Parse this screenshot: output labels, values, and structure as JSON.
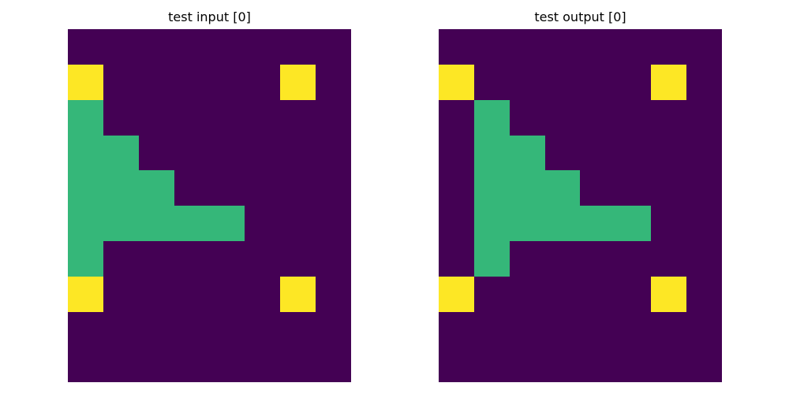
{
  "palette": {
    "0": "#440154",
    "3": "#35b779",
    "4": "#fde725"
  },
  "panels": [
    {
      "title": "test input [0]",
      "grid": [
        [
          0,
          0,
          0,
          0,
          0,
          0,
          0,
          0
        ],
        [
          4,
          0,
          0,
          0,
          0,
          0,
          4,
          0
        ],
        [
          3,
          0,
          0,
          0,
          0,
          0,
          0,
          0
        ],
        [
          3,
          3,
          0,
          0,
          0,
          0,
          0,
          0
        ],
        [
          3,
          3,
          3,
          0,
          0,
          0,
          0,
          0
        ],
        [
          3,
          3,
          3,
          3,
          3,
          0,
          0,
          0
        ],
        [
          3,
          0,
          0,
          0,
          0,
          0,
          0,
          0
        ],
        [
          4,
          0,
          0,
          0,
          0,
          0,
          4,
          0
        ],
        [
          0,
          0,
          0,
          0,
          0,
          0,
          0,
          0
        ],
        [
          0,
          0,
          0,
          0,
          0,
          0,
          0,
          0
        ]
      ]
    },
    {
      "title": "test output [0]",
      "grid": [
        [
          0,
          0,
          0,
          0,
          0,
          0,
          0,
          0
        ],
        [
          4,
          0,
          0,
          0,
          0,
          0,
          4,
          0
        ],
        [
          0,
          3,
          0,
          0,
          0,
          0,
          0,
          0
        ],
        [
          0,
          3,
          3,
          0,
          0,
          0,
          0,
          0
        ],
        [
          0,
          3,
          3,
          3,
          0,
          0,
          0,
          0
        ],
        [
          0,
          3,
          3,
          3,
          3,
          3,
          0,
          0
        ],
        [
          0,
          3,
          0,
          0,
          0,
          0,
          0,
          0
        ],
        [
          4,
          0,
          0,
          0,
          0,
          0,
          4,
          0
        ],
        [
          0,
          0,
          0,
          0,
          0,
          0,
          0,
          0
        ],
        [
          0,
          0,
          0,
          0,
          0,
          0,
          0,
          0
        ]
      ]
    }
  ]
}
